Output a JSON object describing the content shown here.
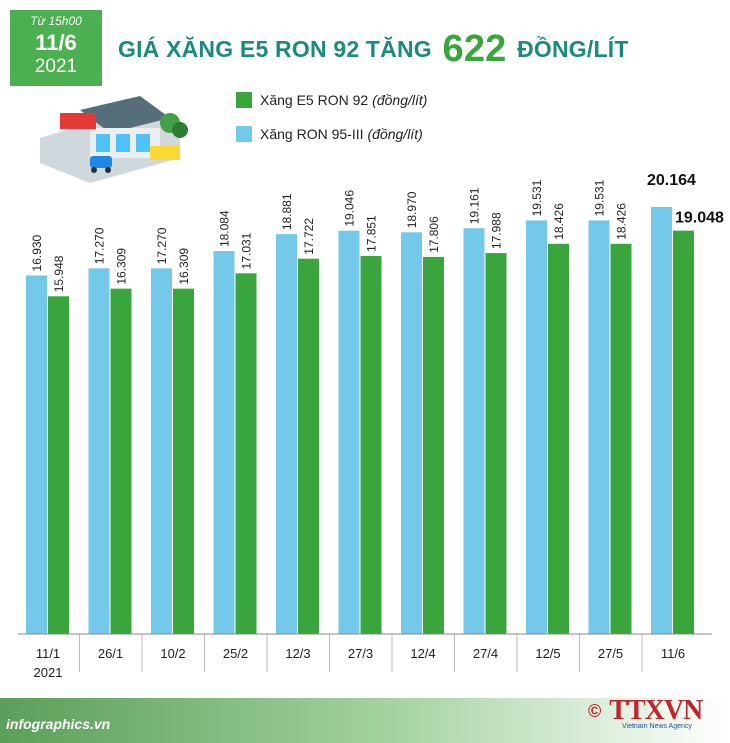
{
  "badge": {
    "from": "Từ 15h00",
    "day": "11/6",
    "year": "2021"
  },
  "title": {
    "prefix": "GIÁ XĂNG E5 RON 92 TĂNG",
    "highlight": "622",
    "suffix": "ĐỒNG/LÍT"
  },
  "legend": [
    {
      "label": "Xăng E5 RON 92",
      "unit": "(đồng/lít)",
      "color": "#3aa53c"
    },
    {
      "label": "Xăng RON 95-III",
      "unit": "(đồng/lít)",
      "color": "#74c8ea"
    }
  ],
  "footer": {
    "site": "infographics.vn",
    "copyright": "©",
    "brand": "TTXVN",
    "brand_sub": "Vietnam News Agency"
  },
  "colors": {
    "ron95": "#74c8ea",
    "e5": "#3aa53c",
    "accent": "#1d8a7f"
  },
  "chart_data": {
    "type": "bar",
    "categories": [
      "11/1",
      "26/1",
      "10/2",
      "25/2",
      "12/3",
      "27/3",
      "12/4",
      "27/4",
      "12/5",
      "27/5",
      "11/6"
    ],
    "first_category_sub": "2021",
    "series": [
      {
        "name": "Xăng RON 95-III",
        "values": [
          16.93,
          17.27,
          17.27,
          18.084,
          18.881,
          19.046,
          18.97,
          19.161,
          19.531,
          19.531,
          20.164
        ],
        "labels": [
          "16.930",
          "17.270",
          "17.270",
          "18.084",
          "18.881",
          "19.046",
          "18.970",
          "19.161",
          "19.531",
          "19.531",
          "20.164"
        ]
      },
      {
        "name": "Xăng E5 RON 92",
        "values": [
          15.948,
          16.309,
          16.309,
          17.031,
          17.722,
          17.851,
          17.806,
          17.988,
          18.426,
          18.426,
          19.048
        ],
        "labels": [
          "15.948",
          "16.309",
          "16.309",
          "17.031",
          "17.722",
          "17.851",
          "17.806",
          "17.988",
          "18.426",
          "18.426",
          "19.048"
        ]
      }
    ],
    "ylim": [
      0,
      20.164
    ],
    "highlight_last": true
  }
}
